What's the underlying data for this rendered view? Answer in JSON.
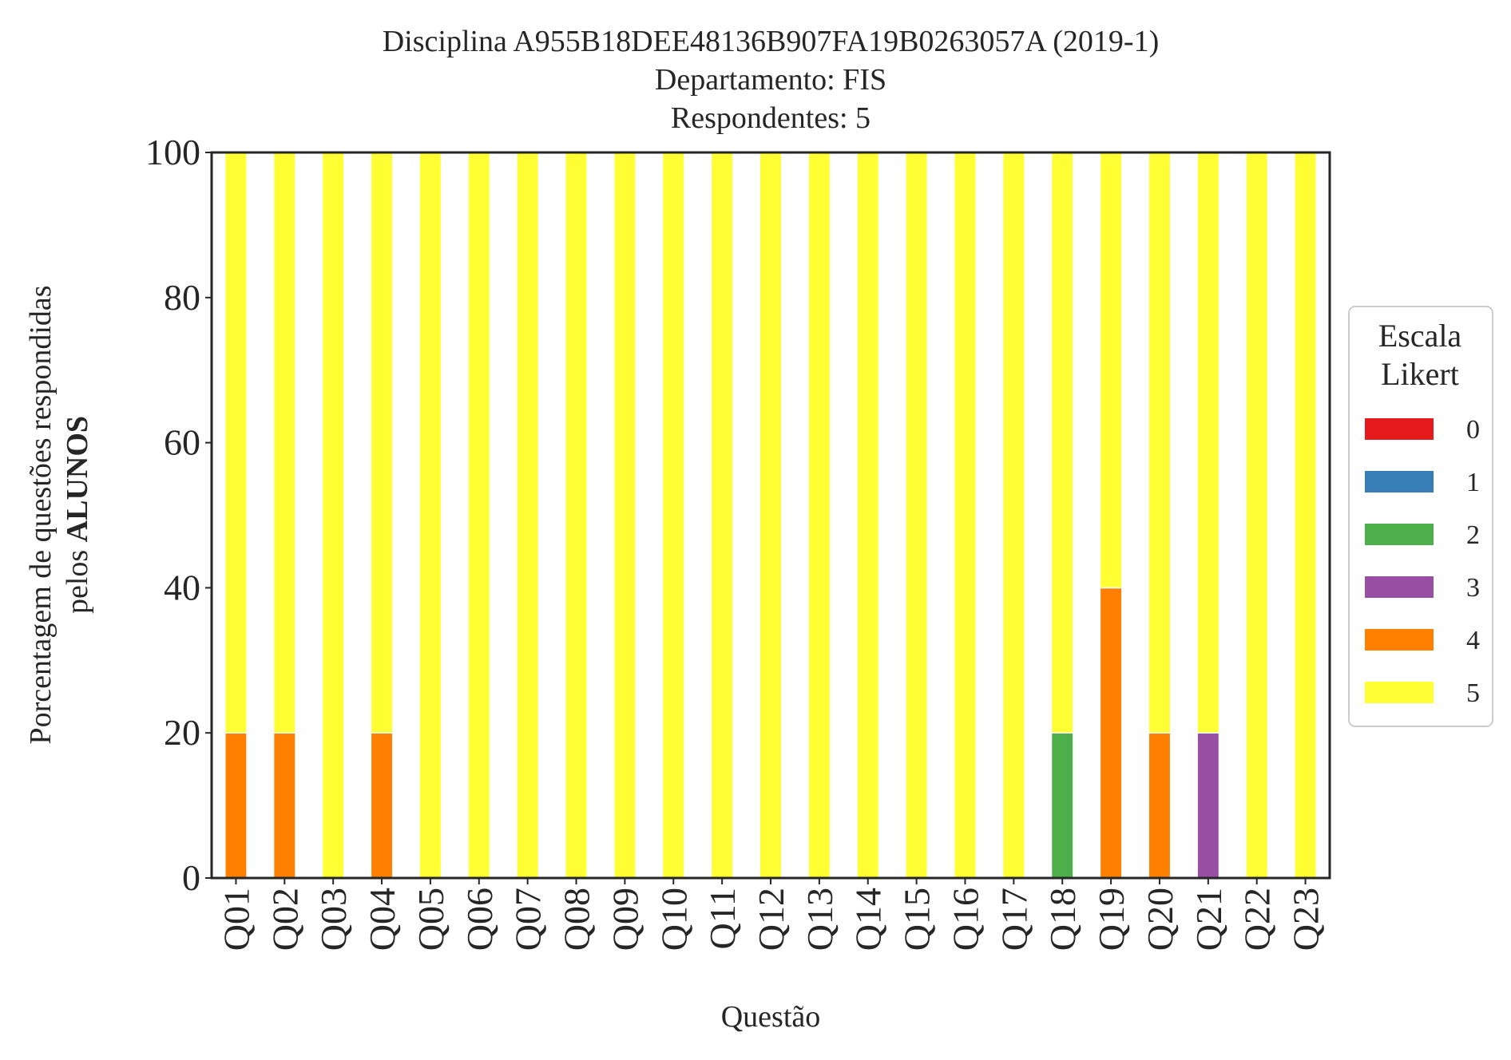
{
  "chart_data": {
    "type": "bar",
    "stacked": true,
    "title_lines": [
      "Disciplina A955B18DEE48136B907FA19B0263057A (2019-1)",
      "Departamento: FIS",
      "Respondentes: 5"
    ],
    "xlabel": "Questão",
    "ylabel_line1": "Porcentagem de questões respondidas",
    "ylabel_line2_prefix": "pelos ",
    "ylabel_line2_bold": "ALUNOS",
    "ylim": [
      0,
      100
    ],
    "yticks": [
      "0",
      "20",
      "40",
      "60",
      "80",
      "100"
    ],
    "grid": false,
    "legend_placement": "right-outside",
    "legend_title_lines": [
      "Escala",
      "Likert"
    ],
    "categories": [
      "Q01",
      "Q02",
      "Q03",
      "Q04",
      "Q05",
      "Q06",
      "Q07",
      "Q08",
      "Q09",
      "Q10",
      "Q11",
      "Q12",
      "Q13",
      "Q14",
      "Q15",
      "Q16",
      "Q17",
      "Q18",
      "Q19",
      "Q20",
      "Q21",
      "Q22",
      "Q23"
    ],
    "series": [
      {
        "name": "0",
        "color": "#e41a1c",
        "values": [
          0,
          0,
          0,
          0,
          0,
          0,
          0,
          0,
          0,
          0,
          0,
          0,
          0,
          0,
          0,
          0,
          0,
          0,
          0,
          0,
          0,
          0,
          0
        ]
      },
      {
        "name": "1",
        "color": "#377eb8",
        "values": [
          0,
          0,
          0,
          0,
          0,
          0,
          0,
          0,
          0,
          0,
          0,
          0,
          0,
          0,
          0,
          0,
          0,
          0,
          0,
          0,
          0,
          0,
          0
        ]
      },
      {
        "name": "2",
        "color": "#4daf4a",
        "values": [
          0,
          0,
          0,
          0,
          0,
          0,
          0,
          0,
          0,
          0,
          0,
          0,
          0,
          0,
          0,
          0,
          0,
          20,
          0,
          0,
          0,
          0,
          0
        ]
      },
      {
        "name": "3",
        "color": "#984ea3",
        "values": [
          0,
          0,
          0,
          0,
          0,
          0,
          0,
          0,
          0,
          0,
          0,
          0,
          0,
          0,
          0,
          0,
          0,
          0,
          0,
          0,
          20,
          0,
          0
        ]
      },
      {
        "name": "4",
        "color": "#ff7f00",
        "values": [
          20,
          20,
          0,
          20,
          0,
          0,
          0,
          0,
          0,
          0,
          0,
          0,
          0,
          0,
          0,
          0,
          0,
          0,
          40,
          20,
          0,
          0,
          0
        ]
      },
      {
        "name": "5",
        "color": "#ffff33",
        "values": [
          80,
          80,
          100,
          80,
          100,
          100,
          100,
          100,
          100,
          100,
          100,
          100,
          100,
          100,
          100,
          100,
          100,
          80,
          60,
          80,
          80,
          100,
          100
        ]
      }
    ]
  }
}
